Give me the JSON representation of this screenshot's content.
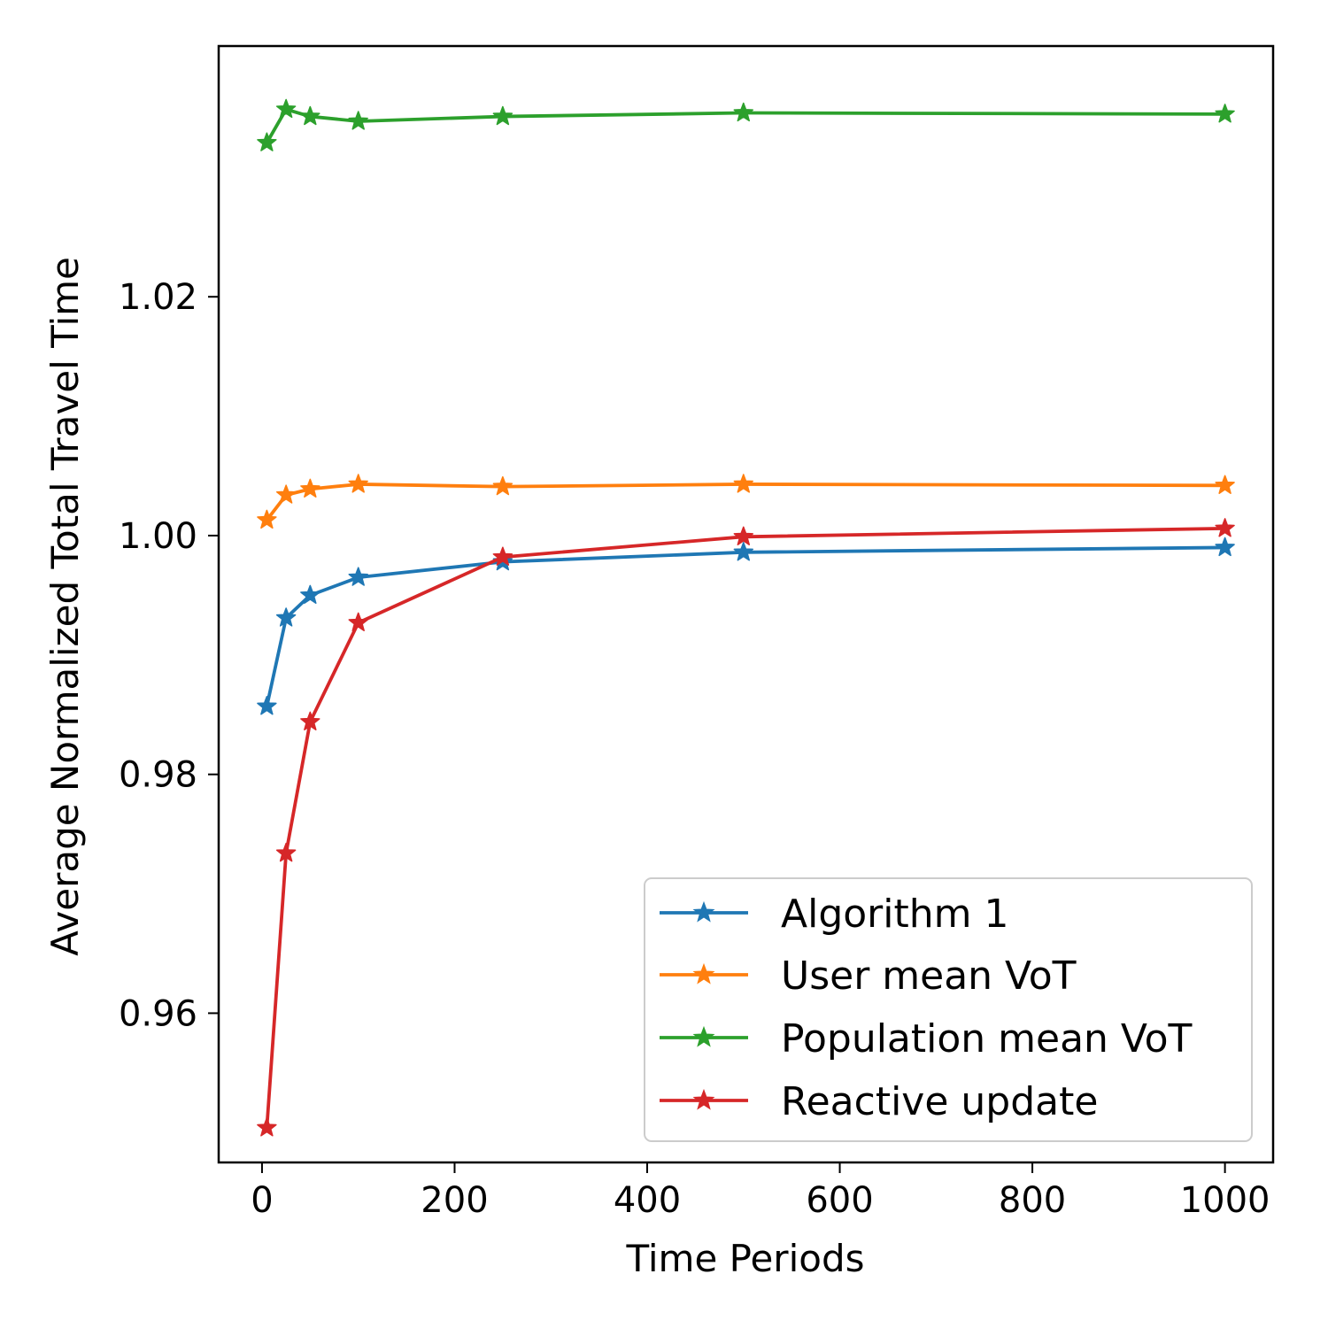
{
  "chart_data": {
    "type": "line",
    "title": "",
    "xlabel": "Time Periods",
    "ylabel": "Average Normalized Total Travel Time",
    "x": [
      5,
      25,
      50,
      100,
      250,
      500,
      1000
    ],
    "xlim": [
      -45,
      1050
    ],
    "ylim": [
      0.9475,
      1.041
    ],
    "xticks": [
      0,
      200,
      400,
      600,
      800,
      1000
    ],
    "xtick_labels": [
      "0",
      "200",
      "400",
      "600",
      "800",
      "1000"
    ],
    "yticks": [
      0.96,
      0.98,
      1.0,
      1.02
    ],
    "ytick_labels": [
      "0.96",
      "0.98",
      "1.00",
      "1.02"
    ],
    "grid": false,
    "legend_position": "lower-right",
    "marker": "star",
    "series": [
      {
        "name": "Algorithm 1",
        "color": "#1f77b4",
        "values": [
          0.9857,
          0.9931,
          0.995,
          0.9965,
          0.9978,
          0.9986,
          0.999
        ]
      },
      {
        "name": "User mean VoT",
        "color": "#ff7f0e",
        "values": [
          1.0013,
          1.0034,
          1.0039,
          1.0043,
          1.0041,
          1.0043,
          1.0042
        ]
      },
      {
        "name": "Population mean VoT",
        "color": "#2ca02c",
        "values": [
          1.0329,
          1.0357,
          1.0351,
          1.0347,
          1.0351,
          1.0354,
          1.0353
        ]
      },
      {
        "name": "Reactive update",
        "color": "#d62728",
        "values": [
          0.9504,
          0.9734,
          0.9844,
          0.9927,
          0.9982,
          0.9999,
          1.0006
        ]
      }
    ]
  }
}
